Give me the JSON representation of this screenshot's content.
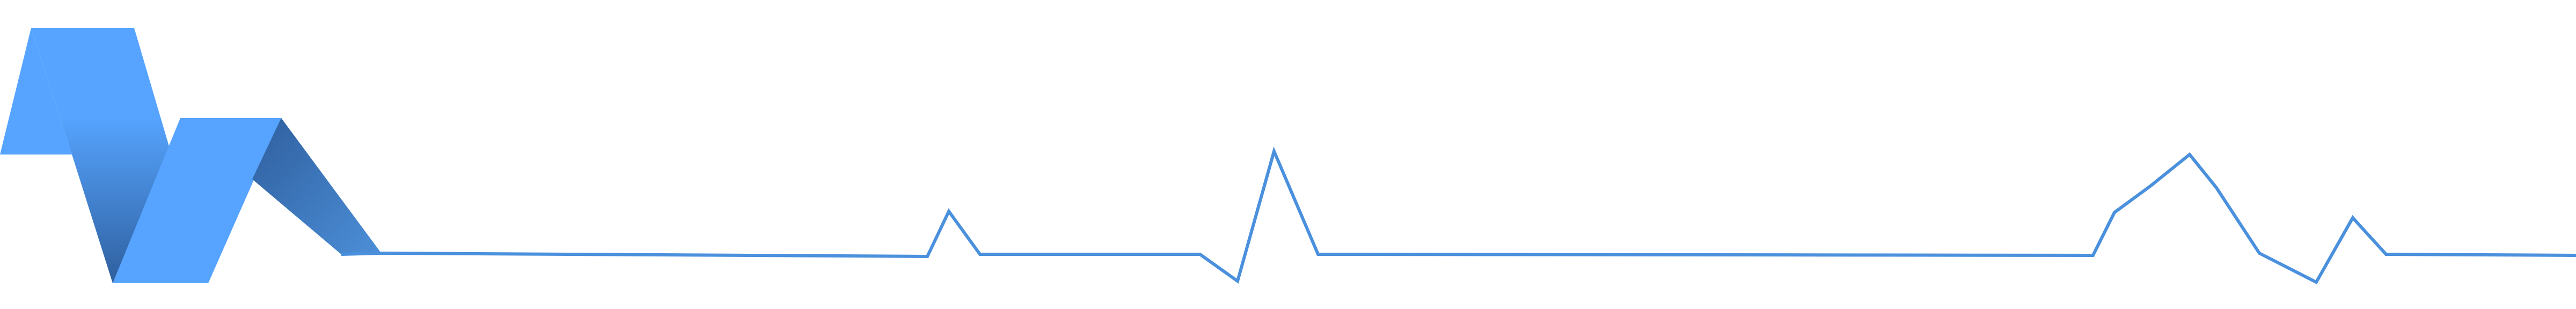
{
  "logo": {
    "icon": "ribbon-heartbeat-logo-icon",
    "colors": {
      "primary": "#56a4ff",
      "dark": "#2f5f9e",
      "mid": "#4c8fd8",
      "line": "#4a90dd"
    }
  }
}
